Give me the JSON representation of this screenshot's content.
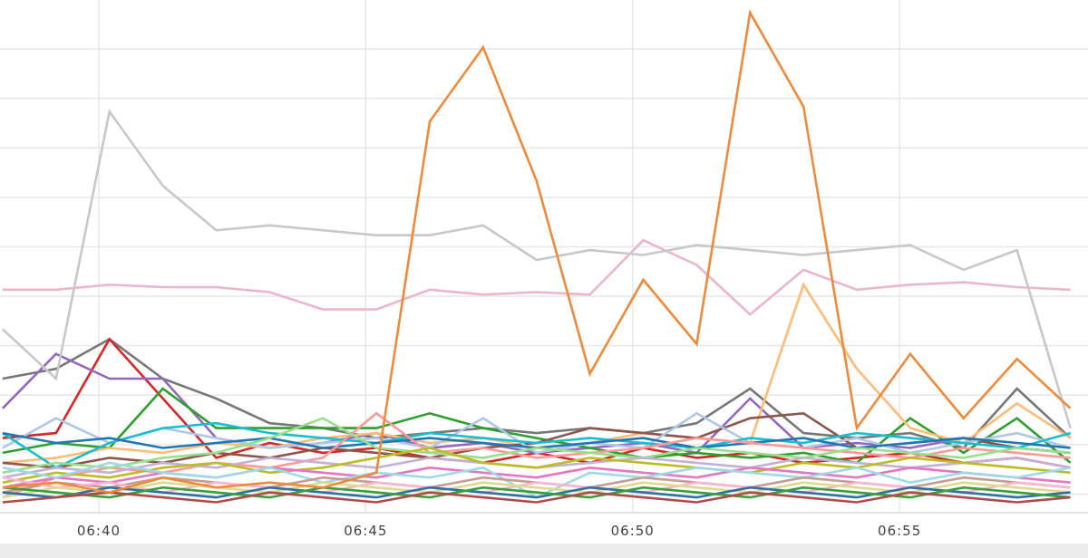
{
  "chart_data": {
    "type": "line",
    "title": "",
    "xlabel": "",
    "ylabel": "",
    "x_tick_labels": [
      "06:40",
      "06:45",
      "06:50",
      "06:55"
    ],
    "x_tick_minutes": [
      40,
      45,
      50,
      55
    ],
    "x": [
      38.2,
      39.2,
      40.2,
      41.2,
      42.2,
      43.2,
      44.2,
      45.2,
      46.2,
      47.2,
      48.2,
      49.2,
      50.2,
      51.2,
      52.2,
      53.2,
      54.2,
      55.2,
      56.2,
      57.2,
      58.2
    ],
    "xlim": [
      38.15,
      58.53
    ],
    "ylim": [
      0,
      100
    ],
    "y_gridlines": [
      10,
      20,
      30,
      40,
      50,
      60,
      70,
      80,
      90,
      100
    ],
    "grid": true,
    "legend": "none",
    "series": [
      {
        "color": "#ef8a3a",
        "values": [
          4,
          5,
          3,
          6,
          4,
          5,
          4,
          7,
          78,
          93,
          66,
          27,
          46,
          33,
          100,
          81,
          16,
          31,
          18,
          30,
          20
        ]
      },
      {
        "color": "#c8c8c8",
        "values": [
          36,
          26,
          80,
          65,
          56,
          57,
          56,
          55,
          55,
          57,
          50,
          52,
          51,
          53,
          52,
          51,
          52,
          53,
          48,
          52,
          16
        ]
      },
      {
        "color": "#ecb5cf",
        "values": [
          44,
          44,
          45,
          44.5,
          44.5,
          43.5,
          40,
          40,
          44,
          43,
          43.5,
          43,
          54,
          49,
          39,
          48,
          44,
          45,
          45.5,
          44.5,
          44
        ]
      },
      {
        "color": "#777777",
        "values": [
          26,
          28,
          34,
          26,
          22,
          17,
          16,
          14,
          15,
          16,
          15,
          16,
          15,
          17,
          24,
          15,
          14,
          15,
          12,
          24,
          14
        ]
      },
      {
        "color": "#d62728",
        "values": [
          14,
          15,
          34,
          22,
          10,
          13,
          11,
          12,
          10,
          9,
          11,
          9,
          12,
          10,
          11,
          9,
          10,
          11,
          9,
          10,
          8
        ]
      },
      {
        "color": "#9467bd",
        "values": [
          20,
          31,
          26,
          26,
          14,
          12,
          13,
          15,
          12,
          13,
          11,
          12,
          13,
          11,
          22,
          12,
          13,
          12,
          14,
          12,
          11
        ]
      },
      {
        "color": "#2ca02c",
        "values": [
          11,
          13,
          12,
          24,
          16,
          16,
          16,
          16,
          19,
          16,
          14,
          12,
          10,
          11,
          10,
          11,
          9,
          18,
          11,
          18,
          9
        ]
      },
      {
        "color": "#ffbb78",
        "values": [
          9,
          10,
          12,
          11,
          13,
          12,
          14,
          15,
          13,
          14,
          12,
          13,
          15,
          14,
          13,
          45,
          28,
          16,
          13,
          21,
          14
        ]
      },
      {
        "color": "#8c564b",
        "values": [
          9,
          8,
          10,
          9,
          11,
          10,
          12,
          11,
          10,
          12,
          13,
          16,
          15,
          14,
          18,
          19,
          12,
          13,
          14,
          12,
          11
        ]
      },
      {
        "color": "#aec7e8",
        "values": [
          12,
          18,
          13,
          16,
          14,
          12,
          13,
          14,
          12,
          18,
          11,
          13,
          12,
          19,
          13,
          12,
          14,
          11,
          13,
          15,
          12
        ]
      },
      {
        "color": "#17becf",
        "values": [
          15,
          8,
          13,
          16,
          17,
          15,
          14,
          13,
          15,
          14,
          13,
          14,
          13,
          12,
          14,
          13,
          15,
          14,
          13,
          12,
          15
        ]
      },
      {
        "color": "#1f77b4",
        "values": [
          15,
          13,
          14,
          12,
          13,
          14,
          12,
          13,
          14,
          13,
          12,
          13,
          14,
          12,
          13,
          14,
          12,
          13,
          14,
          13,
          12
        ]
      },
      {
        "color": "#ff9896",
        "values": [
          2,
          6,
          8,
          7,
          9,
          8,
          10,
          19,
          11,
          12,
          10,
          11,
          12,
          14,
          13,
          12,
          11,
          10,
          12,
          11,
          10
        ]
      },
      {
        "color": "#98df8a",
        "values": [
          7,
          9,
          8,
          10,
          11,
          14,
          18,
          12,
          11,
          10,
          12,
          11,
          10,
          12,
          11,
          10,
          12,
          11,
          10,
          12,
          11
        ]
      },
      {
        "color": "#c5b0d5",
        "values": [
          6,
          8,
          7,
          9,
          8,
          10,
          9,
          8,
          10,
          9,
          8,
          9,
          10,
          9,
          8,
          10,
          9,
          8,
          9,
          10,
          8
        ]
      },
      {
        "color": "#bcbd22",
        "values": [
          5,
          7,
          6,
          8,
          9,
          7,
          8,
          10,
          12,
          9,
          8,
          10,
          9,
          8,
          7,
          9,
          8,
          10,
          9,
          8,
          7
        ]
      },
      {
        "color": "#e377c2",
        "values": [
          4,
          6,
          5,
          7,
          6,
          8,
          7,
          6,
          8,
          7,
          6,
          8,
          7,
          6,
          8,
          7,
          6,
          8,
          7,
          6,
          5
        ]
      },
      {
        "color": "#9edae5",
        "values": [
          8,
          6,
          9,
          7,
          6,
          8,
          5,
          7,
          6,
          8,
          2,
          7,
          6,
          8,
          7,
          6,
          8,
          5,
          7,
          6,
          8
        ]
      },
      {
        "color": "#c49c94",
        "values": [
          3,
          5,
          4,
          6,
          5,
          4,
          6,
          5,
          4,
          6,
          5,
          4,
          6,
          5,
          4,
          6,
          5,
          4,
          6,
          5,
          4
        ]
      },
      {
        "color": "#f7b6d2",
        "values": [
          6,
          4,
          5,
          3,
          5,
          4,
          3,
          5,
          4,
          3,
          5,
          4,
          3,
          5,
          4,
          3,
          5,
          4,
          3,
          5,
          4
        ]
      },
      {
        "color": "#dbdb8d",
        "values": [
          2,
          4,
          3,
          5,
          4,
          3,
          5,
          4,
          3,
          5,
          4,
          3,
          5,
          4,
          3,
          5,
          4,
          3,
          5,
          4,
          3
        ]
      },
      {
        "color": "#2f6fa8",
        "values": [
          3,
          2,
          4,
          3,
          2,
          4,
          3,
          2,
          4,
          3,
          2,
          4,
          3,
          2,
          4,
          3,
          2,
          4,
          3,
          2,
          3
        ]
      },
      {
        "color": "#3a9e3a",
        "values": [
          4,
          3,
          2,
          4,
          3,
          2,
          4,
          3,
          2,
          4,
          3,
          2,
          4,
          3,
          2,
          4,
          3,
          2,
          4,
          3,
          2
        ]
      },
      {
        "color": "#b04a4a",
        "values": [
          1,
          2,
          3,
          2,
          1,
          3,
          2,
          1,
          3,
          2,
          1,
          3,
          2,
          1,
          3,
          2,
          1,
          3,
          2,
          1,
          2
        ]
      }
    ]
  }
}
